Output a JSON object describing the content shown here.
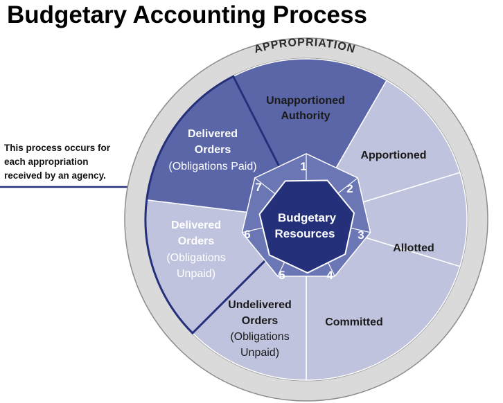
{
  "title": "Budgetary Accounting Process",
  "callout": {
    "line1": "This process occurs for",
    "line2": "each appropriation",
    "line3": "received by an agency."
  },
  "ring_label": "APPROPRIATION",
  "center": {
    "line1": "Budgetary",
    "line2": "Resources"
  },
  "segments": [
    {
      "lines": [
        "Unapportioned",
        "Authority"
      ]
    },
    {
      "lines": [
        "Apportioned"
      ]
    },
    {
      "lines": [
        "Allotted"
      ]
    },
    {
      "lines": [
        "Committed"
      ]
    },
    {
      "lines": [
        "Undelivered",
        "Orders",
        "(Obligations",
        "Unpaid)"
      ]
    },
    {
      "lines": [
        "Delivered",
        "Orders",
        "(Obligations",
        "Unpaid)"
      ]
    },
    {
      "lines": [
        "Delivered",
        "Orders",
        "(Obligations Paid)"
      ]
    }
  ],
  "steps": [
    "1",
    "2",
    "3",
    "4",
    "5",
    "6",
    "7"
  ],
  "colors": {
    "outer_ring": "#d8d8d8",
    "segment_light": "#c0c3dd",
    "segment_highlight": "#5b66a8",
    "heptagon": "#6b76b5",
    "center": "#24307a"
  }
}
